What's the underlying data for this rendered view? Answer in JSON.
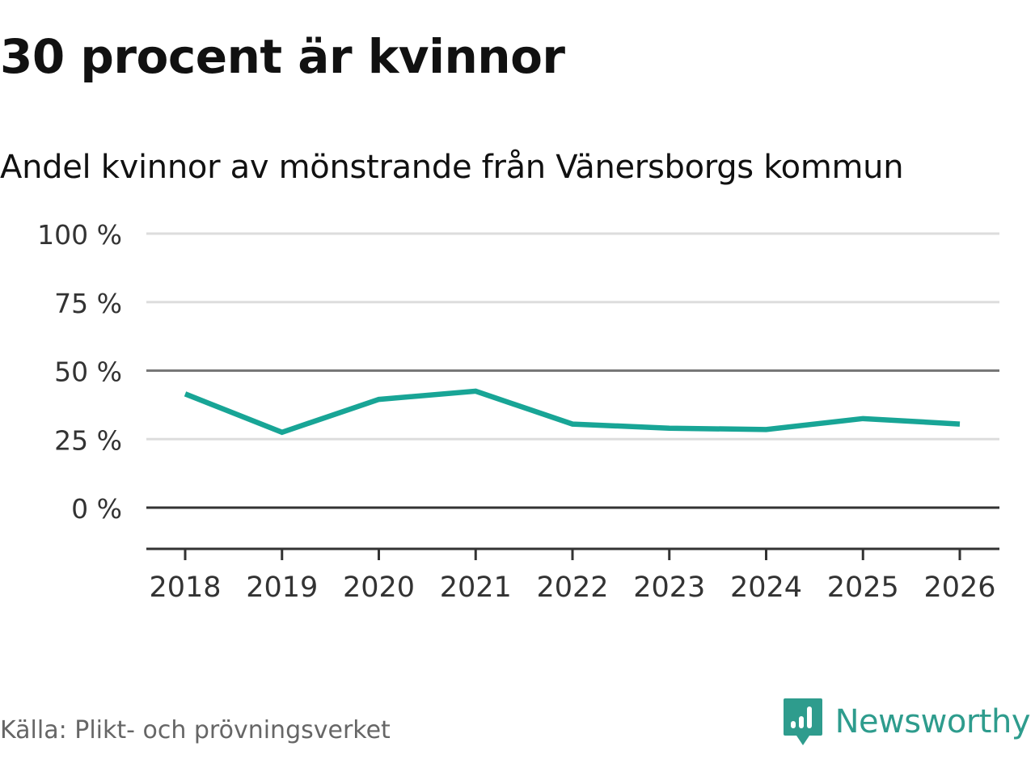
{
  "header": {
    "title": "30 procent är kvinnor",
    "subtitle": "Andel kvinnor av mönstrande från Vänersborgs kommun"
  },
  "footer": {
    "source": "Källa: Plikt- och prövningsverket",
    "brand": "Newsworthy"
  },
  "colors": {
    "line": "#18a596",
    "grid": "#dddddd",
    "axis": "#333333",
    "brand": "#2e9c8d"
  },
  "chart_data": {
    "type": "line",
    "title": "30 procent är kvinnor",
    "subtitle": "Andel kvinnor av mönstrande från Vänersborgs kommun",
    "xlabel": "",
    "ylabel": "",
    "x": [
      "2018",
      "2019",
      "2020",
      "2021",
      "2022",
      "2023",
      "2024",
      "2025",
      "2026"
    ],
    "series": [
      {
        "name": "Andel kvinnor",
        "values": [
          41.5,
          27.5,
          39.5,
          42.5,
          30.5,
          29,
          28.5,
          32.5,
          30.5
        ]
      }
    ],
    "ylim": [
      -15,
      100
    ],
    "yticks": [
      0,
      25,
      50,
      75,
      100
    ],
    "ytick_labels": [
      "0 %",
      "25 %",
      "50 %",
      "75 %",
      "100 %"
    ],
    "xtick_labels": [
      "2018",
      "2019",
      "2020",
      "2021",
      "2022",
      "2023",
      "2024",
      "2025",
      "2026"
    ],
    "grid": true,
    "legend": "none"
  }
}
